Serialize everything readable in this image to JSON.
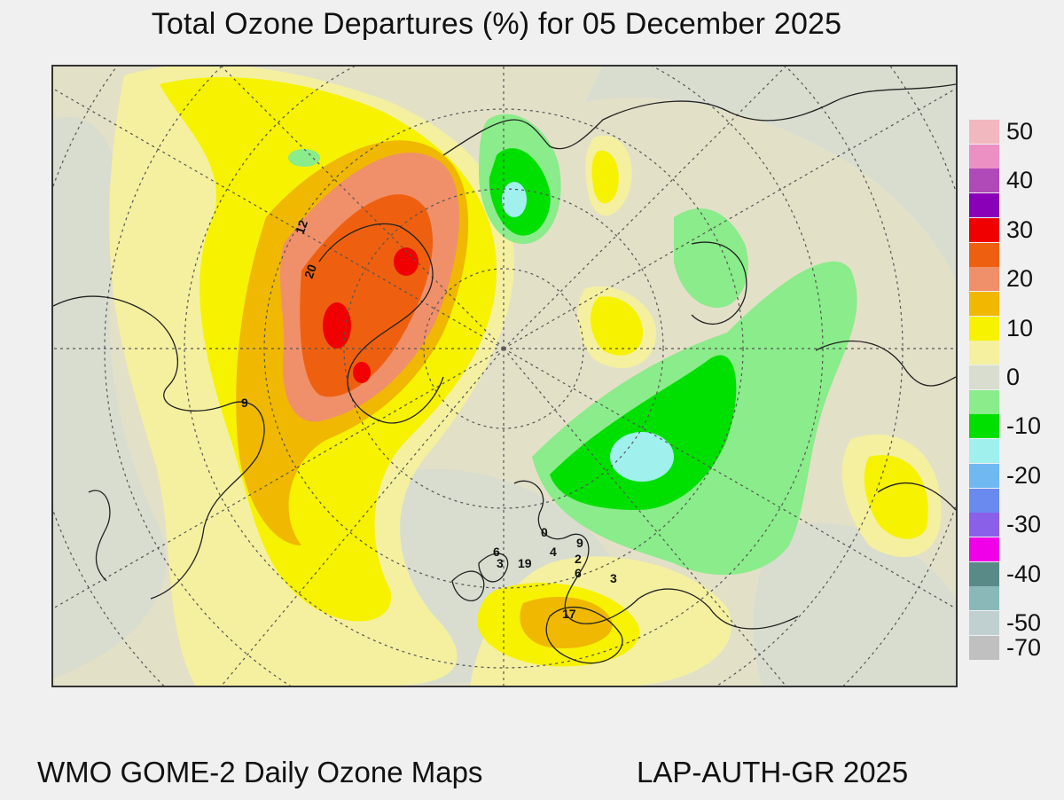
{
  "title": "Total Ozone Departures (%) for 05 December 2025",
  "footer": {
    "left": "WMO GOME-2 Daily Ozone Maps",
    "right": "LAP-AUTH-GR 2025"
  },
  "legend": [
    {
      "label": "50",
      "color": "#f2b8c0"
    },
    {
      "label": "",
      "color": "#ec90c4"
    },
    {
      "label": "40",
      "color": "#b04ab8"
    },
    {
      "label": "",
      "color": "#8a00b8"
    },
    {
      "label": "30",
      "color": "#f00000"
    },
    {
      "label": "",
      "color": "#ee6010"
    },
    {
      "label": "20",
      "color": "#f0906a"
    },
    {
      "label": "",
      "color": "#f0b800"
    },
    {
      "label": "10",
      "color": "#f6f200"
    },
    {
      "label": "",
      "color": "#f4f0a0"
    },
    {
      "label": "0",
      "color": "#d8ddd0"
    },
    {
      "label": "",
      "color": "#8aec8a"
    },
    {
      "label": "-10",
      "color": "#00e000"
    },
    {
      "label": "",
      "color": "#a0f0ee"
    },
    {
      "label": "-20",
      "color": "#70b8f0"
    },
    {
      "label": "",
      "color": "#6a8af0"
    },
    {
      "label": "-30",
      "color": "#8a60e8"
    },
    {
      "label": "",
      "color": "#f000e8"
    },
    {
      "label": "-40",
      "color": "#5a8a88"
    },
    {
      "label": "",
      "color": "#8ab8b8"
    },
    {
      "label": "-50",
      "color": "#c0d0d0"
    },
    {
      "label": "-70",
      "color": "#c0c0c0"
    }
  ],
  "stations": [
    {
      "value": "12"
    },
    {
      "value": "20"
    },
    {
      "value": "9"
    },
    {
      "value": "6"
    },
    {
      "value": "3"
    },
    {
      "value": "19"
    },
    {
      "value": "0"
    },
    {
      "value": "4"
    },
    {
      "value": "9"
    },
    {
      "value": "2"
    },
    {
      "value": "6"
    },
    {
      "value": "3"
    },
    {
      "value": "17"
    }
  ]
}
